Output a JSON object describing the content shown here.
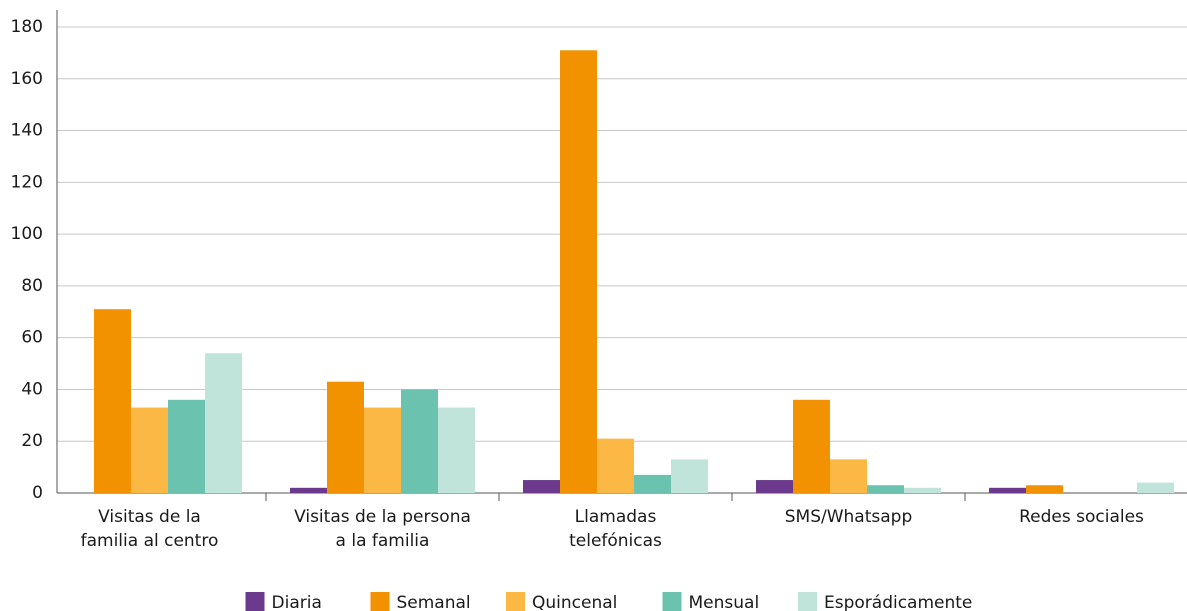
{
  "chart_data": {
    "type": "bar",
    "categories": [
      "Visitas de la\nfamilia al centro",
      "Visitas de la persona\na la familia",
      "Llamadas\ntelefónicas",
      "SMS/Whatsapp",
      "Redes sociales"
    ],
    "series": [
      {
        "name": "Diaria",
        "color": "#6b3a8c",
        "values": [
          0,
          2,
          5,
          5,
          2
        ]
      },
      {
        "name": "Semanal",
        "color": "#f39200",
        "values": [
          71,
          43,
          171,
          36,
          3
        ]
      },
      {
        "name": "Quincenal",
        "color": "#fbb845",
        "values": [
          33,
          33,
          21,
          13,
          0
        ]
      },
      {
        "name": "Mensual",
        "color": "#6bc2ae",
        "values": [
          36,
          40,
          7,
          3,
          0
        ]
      },
      {
        "name": "Esporádicamente",
        "color": "#c1e4da",
        "values": [
          54,
          33,
          13,
          2,
          4
        ]
      }
    ],
    "ylim": [
      0,
      180
    ],
    "yticks": [
      0,
      20,
      40,
      60,
      80,
      100,
      120,
      140,
      160,
      180
    ],
    "grid": true,
    "legend": "bottom"
  }
}
